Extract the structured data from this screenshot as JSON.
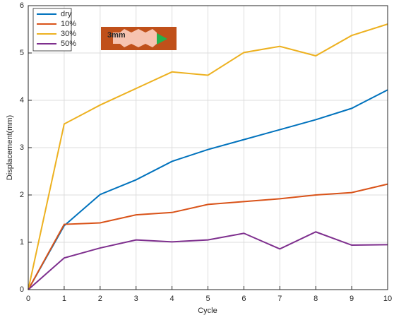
{
  "chart_data": {
    "type": "line",
    "x_label": "Cycle",
    "y_label": "Displacement(mm)",
    "annotation": "3mm",
    "x": [
      0,
      1,
      2,
      3,
      4,
      5,
      6,
      7,
      8,
      9,
      10
    ],
    "series": [
      {
        "name": "dry",
        "color": "#0072bd",
        "values": [
          0,
          1.35,
          2.01,
          2.32,
          2.71,
          2.96,
          3.17,
          3.38,
          3.59,
          3.83,
          4.22
        ]
      },
      {
        "name": "10%",
        "color": "#d95319",
        "values": [
          0,
          1.38,
          1.41,
          1.58,
          1.63,
          1.8,
          1.86,
          1.92,
          2.0,
          2.05,
          2.23
        ]
      },
      {
        "name": "30%",
        "color": "#edb120",
        "values": [
          0,
          3.5,
          3.9,
          4.25,
          4.6,
          4.53,
          5.01,
          5.14,
          4.94,
          5.37,
          5.61
        ]
      },
      {
        "name": "50%",
        "color": "#7e2f8e",
        "values": [
          0,
          0.67,
          0.88,
          1.05,
          1.01,
          1.05,
          1.19,
          0.86,
          1.22,
          0.94,
          0.95
        ]
      }
    ],
    "xlim": [
      0,
      10
    ],
    "xticks": [
      0,
      1,
      2,
      3,
      4,
      5,
      6,
      7,
      8,
      9,
      10
    ],
    "ylim": [
      0,
      6
    ],
    "yticks": [
      0,
      1,
      2,
      3,
      4,
      5,
      6
    ],
    "grid": true,
    "legend": "upper left"
  }
}
